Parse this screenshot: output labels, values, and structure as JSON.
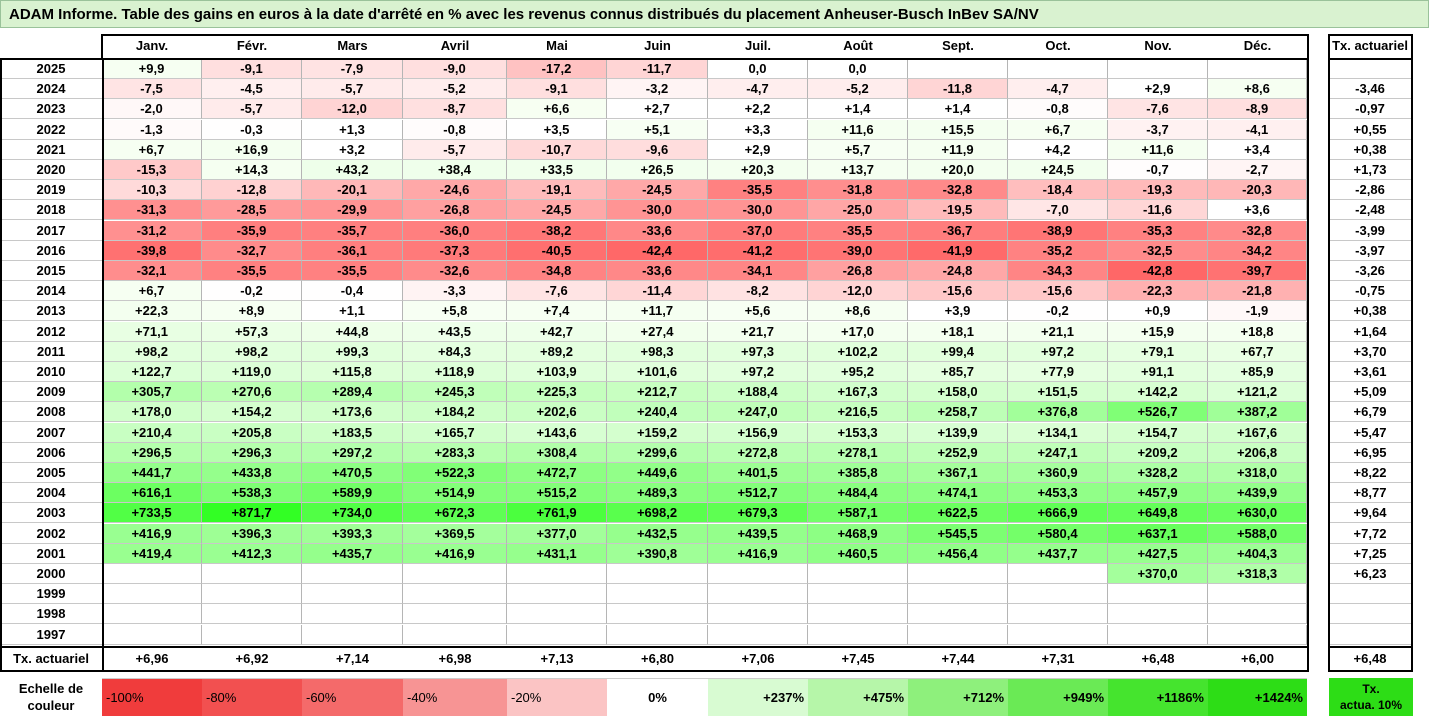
{
  "title": "ADAM Informe. Table des gains en euros à la date d'arrêté en % avec les revenus connus distribués du placement Anheuser-Busch InBev SA/NV",
  "months": [
    "Janv.",
    "Févr.",
    "Mars",
    "Avril",
    "Mai",
    "Juin",
    "Juil.",
    "Août",
    "Sept.",
    "Oct.",
    "Nov.",
    "Déc."
  ],
  "rate_header": "Tx. actuariel",
  "rows": [
    {
      "year": "2025",
      "values": [
        "+9,9",
        "-9,1",
        "-7,9",
        "-9,0",
        "-17,2",
        "-11,7",
        "0,0",
        "0,0",
        "",
        "",
        "",
        ""
      ],
      "rate": ""
    },
    {
      "year": "2024",
      "values": [
        "-7,5",
        "-4,5",
        "-5,7",
        "-5,2",
        "-9,1",
        "-3,2",
        "-4,7",
        "-5,2",
        "-11,8",
        "-4,7",
        "+2,9",
        "+8,6"
      ],
      "rate": "-3,46"
    },
    {
      "year": "2023",
      "values": [
        "-2,0",
        "-5,7",
        "-12,0",
        "-8,7",
        "+6,6",
        "+2,7",
        "+2,2",
        "+1,4",
        "+1,4",
        "-0,8",
        "-7,6",
        "-8,9"
      ],
      "rate": "-0,97"
    },
    {
      "year": "2022",
      "values": [
        "-1,3",
        "-0,3",
        "+1,3",
        "-0,8",
        "+3,5",
        "+5,1",
        "+3,3",
        "+11,6",
        "+15,5",
        "+6,7",
        "-3,7",
        "-4,1"
      ],
      "rate": "+0,55"
    },
    {
      "year": "2021",
      "values": [
        "+6,7",
        "+16,9",
        "+3,2",
        "-5,7",
        "-10,7",
        "-9,6",
        "+2,9",
        "+5,7",
        "+11,9",
        "+4,2",
        "+11,6",
        "+3,4"
      ],
      "rate": "+0,38"
    },
    {
      "year": "2020",
      "values": [
        "-15,3",
        "+14,3",
        "+43,2",
        "+38,4",
        "+33,5",
        "+26,5",
        "+20,3",
        "+13,7",
        "+20,0",
        "+24,5",
        "-0,7",
        "-2,7"
      ],
      "rate": "+1,73"
    },
    {
      "year": "2019",
      "values": [
        "-10,3",
        "-12,8",
        "-20,1",
        "-24,6",
        "-19,1",
        "-24,5",
        "-35,5",
        "-31,8",
        "-32,8",
        "-18,4",
        "-19,3",
        "-20,3"
      ],
      "rate": "-2,86"
    },
    {
      "year": "2018",
      "values": [
        "-31,3",
        "-28,5",
        "-29,9",
        "-26,8",
        "-24,5",
        "-30,0",
        "-30,0",
        "-25,0",
        "-19,5",
        "-7,0",
        "-11,6",
        "+3,6"
      ],
      "rate": "-2,48"
    },
    {
      "year": "2017",
      "values": [
        "-31,2",
        "-35,9",
        "-35,7",
        "-36,0",
        "-38,2",
        "-33,6",
        "-37,0",
        "-35,5",
        "-36,7",
        "-38,9",
        "-35,3",
        "-32,8"
      ],
      "rate": "-3,99"
    },
    {
      "year": "2016",
      "values": [
        "-39,8",
        "-32,7",
        "-36,1",
        "-37,3",
        "-40,5",
        "-42,4",
        "-41,2",
        "-39,0",
        "-41,9",
        "-35,2",
        "-32,5",
        "-34,2"
      ],
      "rate": "-3,97"
    },
    {
      "year": "2015",
      "values": [
        "-32,1",
        "-35,5",
        "-35,5",
        "-32,6",
        "-34,8",
        "-33,6",
        "-34,1",
        "-26,8",
        "-24,8",
        "-34,3",
        "-42,8",
        "-39,7"
      ],
      "rate": "-3,26"
    },
    {
      "year": "2014",
      "values": [
        "+6,7",
        "-0,2",
        "-0,4",
        "-3,3",
        "-7,6",
        "-11,4",
        "-8,2",
        "-12,0",
        "-15,6",
        "-15,6",
        "-22,3",
        "-21,8"
      ],
      "rate": "-0,75"
    },
    {
      "year": "2013",
      "values": [
        "+22,3",
        "+8,9",
        "+1,1",
        "+5,8",
        "+7,4",
        "+11,7",
        "+5,6",
        "+8,6",
        "+3,9",
        "-0,2",
        "+0,9",
        "-1,9"
      ],
      "rate": "+0,38"
    },
    {
      "year": "2012",
      "values": [
        "+71,1",
        "+57,3",
        "+44,8",
        "+43,5",
        "+42,7",
        "+27,4",
        "+21,7",
        "+17,0",
        "+18,1",
        "+21,1",
        "+15,9",
        "+18,8"
      ],
      "rate": "+1,64"
    },
    {
      "year": "2011",
      "values": [
        "+98,2",
        "+98,2",
        "+99,3",
        "+84,3",
        "+89,2",
        "+98,3",
        "+97,3",
        "+102,2",
        "+99,4",
        "+97,2",
        "+79,1",
        "+67,7"
      ],
      "rate": "+3,70"
    },
    {
      "year": "2010",
      "values": [
        "+122,7",
        "+119,0",
        "+115,8",
        "+118,9",
        "+103,9",
        "+101,6",
        "+97,2",
        "+95,2",
        "+85,7",
        "+77,9",
        "+91,1",
        "+85,9"
      ],
      "rate": "+3,61"
    },
    {
      "year": "2009",
      "values": [
        "+305,7",
        "+270,6",
        "+289,4",
        "+245,3",
        "+225,3",
        "+212,7",
        "+188,4",
        "+167,3",
        "+158,0",
        "+151,5",
        "+142,2",
        "+121,2"
      ],
      "rate": "+5,09"
    },
    {
      "year": "2008",
      "values": [
        "+178,0",
        "+154,2",
        "+173,6",
        "+184,2",
        "+202,6",
        "+240,4",
        "+247,0",
        "+216,5",
        "+258,7",
        "+376,8",
        "+526,7",
        "+387,2"
      ],
      "rate": "+6,79"
    },
    {
      "year": "2007",
      "values": [
        "+210,4",
        "+205,8",
        "+183,5",
        "+165,7",
        "+143,6",
        "+159,2",
        "+156,9",
        "+153,3",
        "+139,9",
        "+134,1",
        "+154,7",
        "+167,6"
      ],
      "rate": "+5,47"
    },
    {
      "year": "2006",
      "values": [
        "+296,5",
        "+296,3",
        "+297,2",
        "+283,3",
        "+308,4",
        "+299,6",
        "+272,8",
        "+278,1",
        "+252,9",
        "+247,1",
        "+209,2",
        "+206,8"
      ],
      "rate": "+6,95"
    },
    {
      "year": "2005",
      "values": [
        "+441,7",
        "+433,8",
        "+470,5",
        "+522,3",
        "+472,7",
        "+449,6",
        "+401,5",
        "+385,8",
        "+367,1",
        "+360,9",
        "+328,2",
        "+318,0"
      ],
      "rate": "+8,22"
    },
    {
      "year": "2004",
      "values": [
        "+616,1",
        "+538,3",
        "+589,9",
        "+514,9",
        "+515,2",
        "+489,3",
        "+512,7",
        "+484,4",
        "+474,1",
        "+453,3",
        "+457,9",
        "+439,9"
      ],
      "rate": "+8,77"
    },
    {
      "year": "2003",
      "values": [
        "+733,5",
        "+871,7",
        "+734,0",
        "+672,3",
        "+761,9",
        "+698,2",
        "+679,3",
        "+587,1",
        "+622,5",
        "+666,9",
        "+649,8",
        "+630,0"
      ],
      "rate": "+9,64"
    },
    {
      "year": "2002",
      "values": [
        "+416,9",
        "+396,3",
        "+393,3",
        "+369,5",
        "+377,0",
        "+432,5",
        "+439,5",
        "+468,9",
        "+545,5",
        "+580,4",
        "+637,1",
        "+588,0"
      ],
      "rate": "+7,72"
    },
    {
      "year": "2001",
      "values": [
        "+419,4",
        "+412,3",
        "+435,7",
        "+416,9",
        "+431,1",
        "+390,8",
        "+416,9",
        "+460,5",
        "+456,4",
        "+437,7",
        "+427,5",
        "+404,3"
      ],
      "rate": "+7,25"
    },
    {
      "year": "2000",
      "values": [
        "",
        "",
        "",
        "",
        "",
        "",
        "",
        "",
        "",
        "",
        "+370,0",
        "+318,3"
      ],
      "rate": "+6,23"
    },
    {
      "year": "1999",
      "values": [
        "",
        "",
        "",
        "",
        "",
        "",
        "",
        "",
        "",
        "",
        "",
        ""
      ],
      "rate": ""
    },
    {
      "year": "1998",
      "values": [
        "",
        "",
        "",
        "",
        "",
        "",
        "",
        "",
        "",
        "",
        "",
        ""
      ],
      "rate": ""
    },
    {
      "year": "1997",
      "values": [
        "",
        "",
        "",
        "",
        "",
        "",
        "",
        "",
        "",
        "",
        "",
        ""
      ],
      "rate": ""
    }
  ],
  "footer": {
    "label": "Tx. actuariel",
    "values": [
      "+6,96",
      "+6,92",
      "+7,14",
      "+6,98",
      "+7,13",
      "+6,80",
      "+7,06",
      "+7,45",
      "+7,44",
      "+7,31",
      "+6,48",
      "+6,00"
    ],
    "rate": "+6,48"
  },
  "legend": {
    "label_line1": "Echelle de",
    "label_line2": "couleur",
    "items": [
      {
        "text": "-100%",
        "color": "#f03c3c"
      },
      {
        "text": "-80%",
        "color": "#f25050"
      },
      {
        "text": "-60%",
        "color": "#f46a6a"
      },
      {
        "text": "-40%",
        "color": "#f79494"
      },
      {
        "text": "-20%",
        "color": "#fbc4c4"
      },
      {
        "text": "0%",
        "color": "#ffffff"
      },
      {
        "text": "+237%",
        "color": "#d8fbd2"
      },
      {
        "text": "+475%",
        "color": "#b6f6a9"
      },
      {
        "text": "+712%",
        "color": "#8ef07c"
      },
      {
        "text": "+949%",
        "color": "#6aea55"
      },
      {
        "text": "+1186%",
        "color": "#45e42e"
      },
      {
        "text": "+1424%",
        "color": "#2ddd16"
      }
    ],
    "rate_label_line1": "Tx.",
    "rate_label_line2": "actua. 10%",
    "rate_color": "#2ddd16"
  }
}
